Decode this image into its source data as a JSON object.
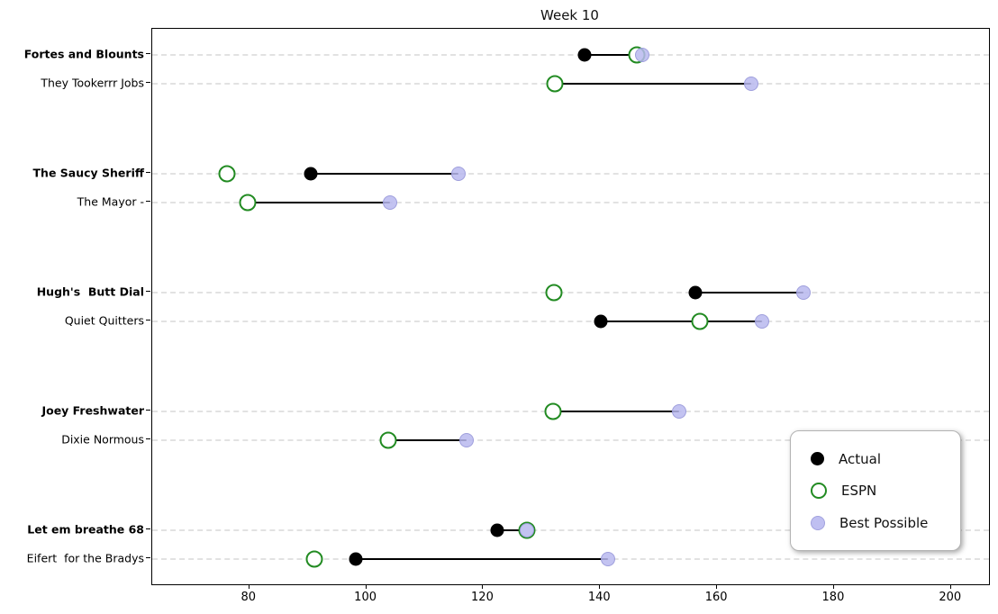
{
  "chart_data": {
    "type": "scatter",
    "subtype": "dumbbell-dot-plot",
    "title": "Week 10",
    "xlabel": "",
    "ylabel": "",
    "xlim": [
      63.4,
      206.5
    ],
    "x_ticks": [
      80,
      100,
      120,
      140,
      160,
      180,
      200
    ],
    "grid": "dashed horizontal line per team row",
    "legend": {
      "position": "lower right",
      "entries": [
        {
          "name": "Actual",
          "marker": "filled-circle",
          "color": "#000000"
        },
        {
          "name": "ESPN",
          "marker": "open-circle",
          "color": "#228B22"
        },
        {
          "name": "Best Possible",
          "marker": "filled-circle",
          "color": "#b8b8ef"
        }
      ]
    },
    "colors": {
      "actual": "#000000",
      "espn": "#228B22",
      "best_possible": "#b8b8ef",
      "connector": "#000000",
      "gridline": "#e2e2e2"
    },
    "teams": [
      {
        "name": "Fortes and Blounts",
        "bold": true,
        "actual": 137.3,
        "espn": 146.2,
        "best_possible": 147.2
      },
      {
        "name": "They Tookerrr Jobs",
        "bold": false,
        "actual": 132.2,
        "espn": 132.2,
        "best_possible": 165.8
      },
      {
        "name": "The Saucy Sheriff",
        "bold": true,
        "actual": 90.5,
        "espn": 76.2,
        "best_possible": 115.7
      },
      {
        "name": "The Mayor -",
        "bold": false,
        "actual": 79.7,
        "espn": 79.7,
        "best_possible": 104.0
      },
      {
        "name": "Hugh's  Butt Dial",
        "bold": true,
        "actual": 156.3,
        "espn": 132.1,
        "best_possible": 174.7
      },
      {
        "name": "Quiet Quitters",
        "bold": false,
        "actual": 140.1,
        "espn": 157.0,
        "best_possible": 167.7
      },
      {
        "name": "Joey Freshwater",
        "bold": true,
        "actual": 131.9,
        "espn": 131.9,
        "best_possible": 153.5
      },
      {
        "name": "Dixie Normous",
        "bold": false,
        "actual": 103.7,
        "espn": 103.7,
        "best_possible": 117.1
      },
      {
        "name": "Let em breathe 68",
        "bold": true,
        "actual": 122.4,
        "espn": 127.5,
        "best_possible": 127.5
      },
      {
        "name": "Eifert  for the Bradys",
        "bold": false,
        "actual": 98.2,
        "espn": 91.2,
        "best_possible": 141.3
      }
    ]
  }
}
